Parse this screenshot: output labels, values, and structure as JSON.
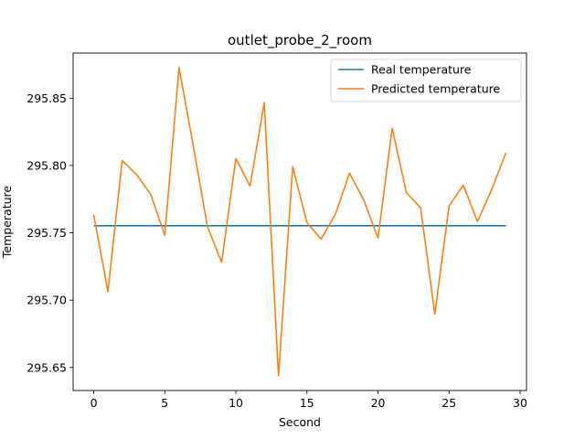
{
  "chart_data": {
    "type": "line",
    "title": "outlet_probe_2_room",
    "xlabel": "Second",
    "ylabel": "Temperature",
    "xlim": [
      -1.45,
      30.45
    ],
    "ylim": [
      295.6329,
      295.8835
    ],
    "xticks": [
      0,
      5,
      10,
      15,
      20,
      25,
      30
    ],
    "yticks": [
      295.65,
      295.7,
      295.75,
      295.8,
      295.85
    ],
    "ytick_labels": [
      "295.65",
      "295.70",
      "295.75",
      "295.80",
      "295.85"
    ],
    "grid": false,
    "legend_position": "top-right",
    "series": [
      {
        "name": "Real temperature",
        "color": "#1f77b4",
        "x": [
          0,
          29
        ],
        "y": [
          295.7553,
          295.7553
        ]
      },
      {
        "name": "Predicted temperature",
        "color": "#ff7f0e",
        "x": [
          0,
          1,
          2,
          3,
          4,
          5,
          6,
          7,
          8,
          9,
          10,
          11,
          12,
          13,
          14,
          15,
          16,
          17,
          18,
          19,
          20,
          21,
          22,
          23,
          24,
          25,
          26,
          27,
          28,
          29
        ],
        "y": [
          295.7633,
          295.7064,
          295.8036,
          295.7935,
          295.7788,
          295.7481,
          295.8728,
          295.815,
          295.7546,
          295.7281,
          295.8052,
          295.7848,
          295.8467,
          295.644,
          295.799,
          295.7576,
          295.7454,
          295.7637,
          295.7943,
          295.7743,
          295.7461,
          295.8277,
          295.78,
          295.7685,
          295.6897,
          295.7699,
          295.7854,
          295.7584,
          295.7821,
          295.8094
        ]
      }
    ]
  }
}
